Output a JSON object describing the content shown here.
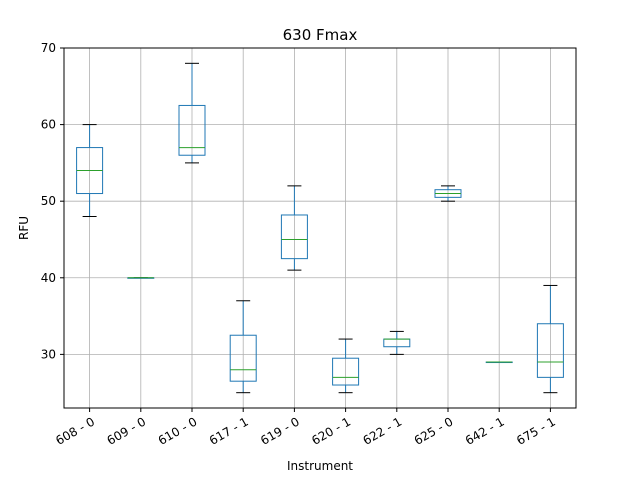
{
  "chart_data": {
    "type": "box",
    "title": "630 Fmax",
    "xlabel": "Instrument",
    "ylabel": "RFU",
    "ylim": [
      23,
      70
    ],
    "yticks": [
      30,
      40,
      50,
      60,
      70
    ],
    "grid": true,
    "categories": [
      "608 - 0",
      "609 - 0",
      "610 - 0",
      "617 - 1",
      "619 - 0",
      "620 - 1",
      "622 - 1",
      "625 - 0",
      "642 - 1",
      "675 - 1"
    ],
    "boxes": [
      {
        "whisker_low": 48,
        "q1": 51,
        "median": 54,
        "q3": 57,
        "whisker_high": 60
      },
      {
        "whisker_low": 40,
        "q1": 40,
        "median": 40,
        "q3": 40,
        "whisker_high": 40
      },
      {
        "whisker_low": 55,
        "q1": 56,
        "median": 57,
        "q3": 62.5,
        "whisker_high": 68
      },
      {
        "whisker_low": 25,
        "q1": 26.5,
        "median": 28,
        "q3": 32.5,
        "whisker_high": 37
      },
      {
        "whisker_low": 41,
        "q1": 42.5,
        "median": 45,
        "q3": 48.2,
        "whisker_high": 52
      },
      {
        "whisker_low": 25,
        "q1": 26,
        "median": 27,
        "q3": 29.5,
        "whisker_high": 32
      },
      {
        "whisker_low": 30,
        "q1": 31,
        "median": 32,
        "q3": 32,
        "whisker_high": 33
      },
      {
        "whisker_low": 50,
        "q1": 50.5,
        "median": 51,
        "q3": 51.5,
        "whisker_high": 52
      },
      {
        "whisker_low": 29,
        "q1": 29,
        "median": 29,
        "q3": 29,
        "whisker_high": 29
      },
      {
        "whisker_low": 25,
        "q1": 27,
        "median": 29,
        "q3": 34,
        "whisker_high": 39
      }
    ],
    "colors": {
      "box": "#1f77b4",
      "median": "#2ca02c",
      "whisker": "#000000",
      "grid": "#b0b0b0"
    }
  }
}
